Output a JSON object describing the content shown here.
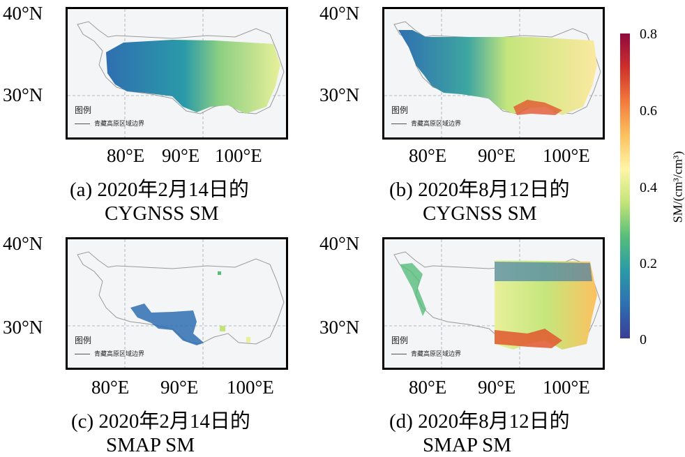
{
  "panels": [
    {
      "id": "a",
      "lat_top": "40°N",
      "lat_mid": "30°N",
      "lon": [
        "80°E",
        "90°E",
        "100°E"
      ],
      "caption1": "(a) 2020年2月14日的",
      "caption2": "CYGNSS SM",
      "legend_title": "图例",
      "legend_item": "青藏高原区域边界"
    },
    {
      "id": "b",
      "lat_top": "40°N",
      "lat_mid": "30°N",
      "lon": [
        "80°E",
        "90°E",
        "100°E"
      ],
      "caption1": "(b) 2020年8月12日的",
      "caption2": "CYGNSS SM",
      "legend_title": "图例",
      "legend_item": "青藏高原区域边界"
    },
    {
      "id": "c",
      "lat_top": "40°N",
      "lat_mid": "30°N",
      "lon": [
        "80°E",
        "90°E",
        "100°E"
      ],
      "caption1": "(c) 2020年2月14日的",
      "caption2": "SMAP SM",
      "legend_title": "图例",
      "legend_item": "青藏高原区域边界"
    },
    {
      "id": "d",
      "lat_top": "40°N",
      "lat_mid": "30°N",
      "lon": [
        "80°E",
        "90°E",
        "100°E"
      ],
      "caption1": "(d) 2020年8月12日的",
      "caption2": "SMAP SM",
      "legend_title": "图例",
      "legend_item": "青藏高原区域边界"
    }
  ],
  "colorbar": {
    "label": "SM/(cm³/cm³)",
    "ticks": [
      "0.8",
      "0.6",
      "0.4",
      "0.2",
      "0"
    ],
    "colors": [
      "#3a3d98",
      "#2f6fb1",
      "#2a9aa8",
      "#56bd7a",
      "#c2e479",
      "#fff6a8",
      "#fdc15f",
      "#f27a3c",
      "#cf2f2c",
      "#8f0a3e"
    ]
  }
}
